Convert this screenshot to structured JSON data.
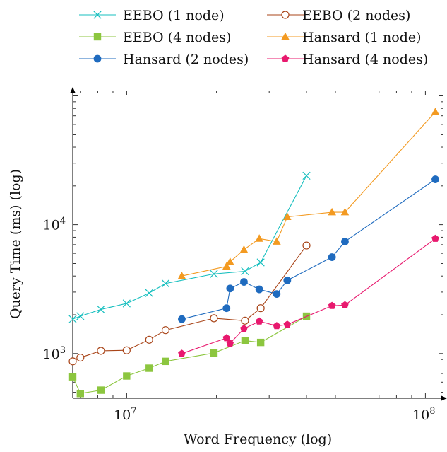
{
  "chart_data": {
    "type": "line",
    "xlabel": "Word Frequency (log)",
    "ylabel": "Query Time (ms) (log)",
    "x_scale": "log",
    "y_scale": "log",
    "xlim": [
      6600000,
      115000000
    ],
    "ylim": [
      450,
      110000
    ],
    "x_ticks": [
      {
        "value": 10000000,
        "base": "10",
        "exp": "7"
      },
      {
        "value": 100000000,
        "base": "10",
        "exp": "8"
      }
    ],
    "y_ticks": [
      {
        "value": 1000,
        "base": "10",
        "exp": "3"
      },
      {
        "value": 10000,
        "base": "10",
        "exp": "4"
      }
    ],
    "legend_position": "top",
    "series": [
      {
        "name": "EEBO (1 node)",
        "color": "#17bfbf",
        "marker": "x",
        "points": [
          [
            6600000,
            1850
          ],
          [
            7000000,
            1950
          ],
          [
            8200000,
            2200
          ],
          [
            10000000,
            2450
          ],
          [
            11900000,
            2950
          ],
          [
            13500000,
            3500
          ],
          [
            19600000,
            4150
          ],
          [
            24900000,
            4350
          ],
          [
            28100000,
            5100
          ],
          [
            40000000,
            24000
          ]
        ]
      },
      {
        "name": "EEBO (2 nodes)",
        "color": "#a94519",
        "marker": "circle-open",
        "points": [
          [
            6600000,
            870
          ],
          [
            7000000,
            930
          ],
          [
            8200000,
            1050
          ],
          [
            10000000,
            1060
          ],
          [
            11900000,
            1280
          ],
          [
            13500000,
            1520
          ],
          [
            19600000,
            1880
          ],
          [
            24900000,
            1800
          ],
          [
            28100000,
            2250
          ],
          [
            40000000,
            6900
          ]
        ]
      },
      {
        "name": "EEBO (4 nodes)",
        "color": "#8cc63f",
        "marker": "square",
        "points": [
          [
            6600000,
            660
          ],
          [
            7000000,
            490
          ],
          [
            8200000,
            520
          ],
          [
            10000000,
            670
          ],
          [
            11900000,
            770
          ],
          [
            13500000,
            870
          ],
          [
            19600000,
            1010
          ],
          [
            24900000,
            1260
          ],
          [
            28100000,
            1220
          ],
          [
            40000000,
            1950
          ]
        ]
      },
      {
        "name": "Hansard (1 node)",
        "color": "#f39a21",
        "marker": "triangle",
        "points": [
          [
            15300000,
            4000
          ],
          [
            21600000,
            4750
          ],
          [
            22200000,
            5150
          ],
          [
            24700000,
            6400
          ],
          [
            27800000,
            7800
          ],
          [
            31800000,
            7400
          ],
          [
            34500000,
            11500
          ],
          [
            48700000,
            12500
          ],
          [
            53800000,
            12500
          ],
          [
            108000000,
            75000
          ]
        ]
      },
      {
        "name": "Hansard (2 nodes)",
        "color": "#1f6bbf",
        "marker": "circle",
        "points": [
          [
            15300000,
            1850
          ],
          [
            21600000,
            2250
          ],
          [
            22200000,
            3200
          ],
          [
            24700000,
            3600
          ],
          [
            27800000,
            3150
          ],
          [
            31800000,
            2900
          ],
          [
            34500000,
            3700
          ],
          [
            48700000,
            5600
          ],
          [
            53800000,
            7400
          ],
          [
            108000000,
            22500
          ]
        ]
      },
      {
        "name": "Hansard (4 nodes)",
        "color": "#e8196e",
        "marker": "pentagon",
        "points": [
          [
            15300000,
            1000
          ],
          [
            21600000,
            1320
          ],
          [
            22200000,
            1200
          ],
          [
            24700000,
            1560
          ],
          [
            27800000,
            1780
          ],
          [
            31800000,
            1640
          ],
          [
            34500000,
            1680
          ],
          [
            48700000,
            2350
          ],
          [
            53800000,
            2380
          ],
          [
            108000000,
            7800
          ]
        ]
      }
    ]
  }
}
